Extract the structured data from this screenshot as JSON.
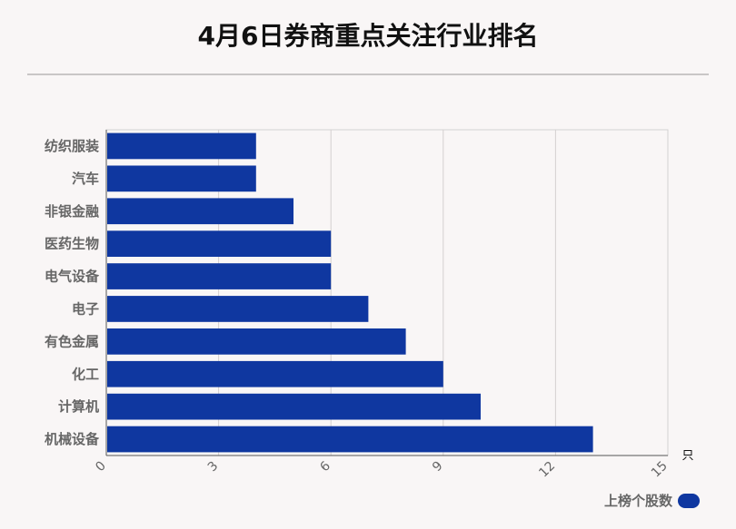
{
  "title": "4月6日券商重点关注行业排名",
  "colors": {
    "bar": "#0f37a0",
    "grid": "#d4d1d1",
    "axis": "#666666",
    "label": "#666666"
  },
  "chart_data": {
    "type": "bar",
    "orientation": "horizontal",
    "categories": [
      "纺织服装",
      "汽车",
      "非银金融",
      "医药生物",
      "电气设备",
      "电子",
      "有色金属",
      "化工",
      "计算机",
      "机械设备"
    ],
    "series": [
      {
        "name": "上榜个股数",
        "values": [
          4,
          4,
          5,
          6,
          6,
          7,
          8,
          9,
          10,
          13
        ]
      }
    ],
    "xlim": [
      0,
      15
    ],
    "xticks": [
      "0",
      "3",
      "6",
      "9",
      "12",
      "15"
    ],
    "xunit": "只",
    "grid": true,
    "legend_position": "bottom-right"
  }
}
